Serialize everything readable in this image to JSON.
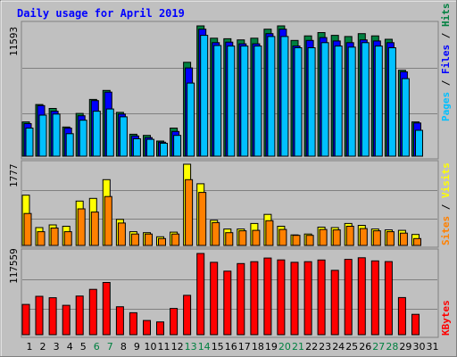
{
  "chart_data": [
    {
      "type": "bar",
      "title": "Daily usage for April 2019",
      "ylabel_top": "11593",
      "right_labels": [
        "Pages",
        "Files",
        "Hits"
      ],
      "categories": [
        "1",
        "2",
        "3",
        "4",
        "5",
        "6",
        "7",
        "8",
        "9",
        "10",
        "11",
        "12",
        "13",
        "14",
        "15",
        "16",
        "17",
        "18",
        "19",
        "20",
        "21",
        "22",
        "23",
        "24",
        "25",
        "26",
        "27",
        "28",
        "29",
        "30",
        "31"
      ],
      "weekend_days": [
        "6",
        "7",
        "13",
        "14",
        "20",
        "21",
        "27",
        "28"
      ],
      "ylim": [
        0,
        11593
      ],
      "series": [
        {
          "name": "Hits",
          "color": "#008040",
          "values": [
            3050,
            4600,
            4250,
            2600,
            3800,
            5050,
            5850,
            3900,
            1950,
            1850,
            1350,
            2500,
            8350,
            11593,
            10500,
            10450,
            10350,
            10500,
            11300,
            11593,
            10300,
            10700,
            11000,
            10750,
            10650,
            10900,
            10700,
            10400,
            7650,
            3050,
            0
          ]
        },
        {
          "name": "Files",
          "color": "#0000ff",
          "values": [
            2900,
            4500,
            4000,
            2500,
            3600,
            4950,
            5700,
            3750,
            1800,
            1650,
            1250,
            2200,
            7850,
            11300,
            10100,
            10150,
            10000,
            10000,
            10900,
            11300,
            9800,
            10300,
            10550,
            10250,
            10100,
            10350,
            10250,
            10100,
            7500,
            2950,
            0
          ]
        },
        {
          "name": "Pages",
          "color": "#00c0ff",
          "values": [
            2500,
            3650,
            3750,
            2000,
            3200,
            4000,
            4200,
            3500,
            1550,
            1500,
            1150,
            1850,
            6500,
            10750,
            9850,
            9800,
            9800,
            9800,
            10650,
            10650,
            9650,
            9650,
            10100,
            9800,
            9700,
            10100,
            9800,
            9650,
            6900,
            2300,
            0
          ]
        }
      ]
    },
    {
      "type": "bar",
      "ylabel_top": "1777",
      "right_labels": [
        "Sites",
        "Visits"
      ],
      "categories": [
        "1",
        "2",
        "3",
        "4",
        "5",
        "6",
        "7",
        "8",
        "9",
        "10",
        "11",
        "12",
        "13",
        "14",
        "15",
        "16",
        "17",
        "18",
        "19",
        "20",
        "21",
        "22",
        "23",
        "24",
        "25",
        "26",
        "27",
        "28",
        "29",
        "30",
        "31"
      ],
      "ylim": [
        0,
        1777
      ],
      "series": [
        {
          "name": "Visits",
          "color": "#ffff00",
          "values": [
            1100,
            390,
            450,
            420,
            970,
            1030,
            1440,
            570,
            300,
            280,
            190,
            290,
            1777,
            1350,
            550,
            360,
            360,
            480,
            680,
            420,
            230,
            250,
            400,
            390,
            480,
            440,
            360,
            340,
            330,
            240,
            0
          ]
        },
        {
          "name": "Sites",
          "color": "#ff8000",
          "values": [
            700,
            300,
            380,
            300,
            800,
            730,
            1070,
            490,
            250,
            250,
            150,
            250,
            1440,
            1160,
            500,
            280,
            320,
            330,
            540,
            350,
            220,
            220,
            350,
            340,
            420,
            370,
            320,
            300,
            270,
            150,
            0
          ]
        }
      ]
    },
    {
      "type": "bar",
      "ylabel_top": "117559",
      "right_labels": [
        "KBytes"
      ],
      "categories": [
        "1",
        "2",
        "3",
        "4",
        "5",
        "6",
        "7",
        "8",
        "9",
        "10",
        "11",
        "12",
        "13",
        "14",
        "15",
        "16",
        "17",
        "18",
        "19",
        "20",
        "21",
        "22",
        "23",
        "24",
        "25",
        "26",
        "27",
        "28",
        "29",
        "30",
        "31"
      ],
      "ylim": [
        0,
        117559
      ],
      "series": [
        {
          "name": "KBytes",
          "color": "#ff0000",
          "values": [
            43800,
            55600,
            53500,
            42500,
            55900,
            65600,
            75600,
            40400,
            31800,
            20500,
            18500,
            38000,
            57000,
            117559,
            104800,
            92000,
            102900,
            105700,
            111000,
            108200,
            104800,
            105700,
            108100,
            93200,
            109000,
            111400,
            106800,
            105800,
            53800,
            29500,
            0
          ]
        }
      ]
    }
  ]
}
